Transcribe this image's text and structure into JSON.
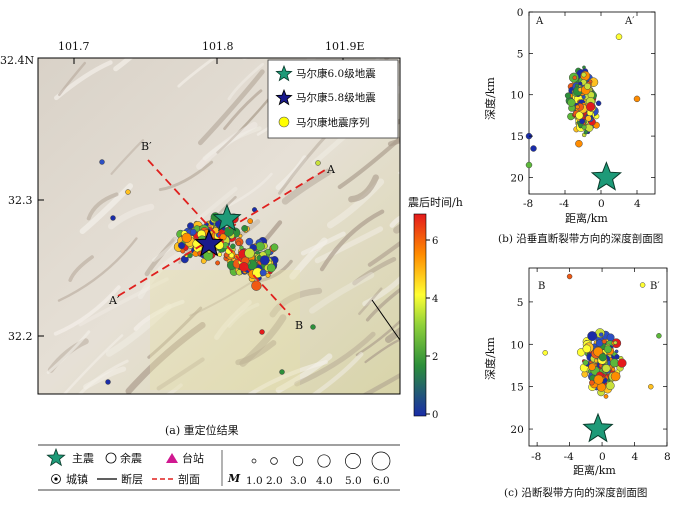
{
  "main_map": {
    "lon_ticks": [
      "101.7",
      "101.8",
      "101.9E"
    ],
    "lat_ticks": [
      "32.4N",
      "32.3",
      "32.2"
    ],
    "caption": "(a) 重定位结果",
    "profile_labels": {
      "a": "A",
      "a_prime": "A′",
      "b": "B",
      "b_prime": "B′"
    },
    "legend": {
      "items": [
        {
          "label": "马尔康6.0级地震",
          "color": "#1e9a78"
        },
        {
          "label": "马尔康5.8级地震",
          "color": "#1a1a8c"
        },
        {
          "label": "马尔康地震序列",
          "color": "#ffff00"
        }
      ]
    },
    "colorbar": {
      "title": "震后时间/h",
      "ticks": [
        "6",
        "4",
        "2",
        "0"
      ],
      "colors": [
        "#e41a1c",
        "#ff8c00",
        "#ffff33",
        "#33a02c",
        "#1a2ca8"
      ]
    }
  },
  "profile_b": {
    "caption": "(b) 沿垂直断裂带方向的深度剖面图",
    "left_label": "A",
    "right_label": "A′",
    "xlabel": "距离/km",
    "ylabel": "深度/km",
    "x_ticks": [
      "-8",
      "-4",
      "0",
      "4"
    ],
    "y_ticks": [
      "0",
      "5",
      "10",
      "15",
      "20"
    ]
  },
  "profile_c": {
    "caption": "(c) 沿断裂带方向的深度剖面图",
    "left_label": "B",
    "right_label": "B′",
    "xlabel": "距离/km",
    "ylabel": "深度/km",
    "x_ticks": [
      "-8",
      "-4",
      "0",
      "4",
      "8"
    ],
    "y_ticks": [
      "5",
      "10",
      "15",
      "20"
    ]
  },
  "bottom_legend": {
    "mainshock": "主震",
    "aftershock": "余震",
    "station": "台站",
    "town": "城镇",
    "fault": "断层",
    "section": "剖面",
    "m_label": "M",
    "sizes": [
      "1.0",
      "2.0",
      "3.0",
      "4.0",
      "5.0",
      "6.0"
    ]
  }
}
